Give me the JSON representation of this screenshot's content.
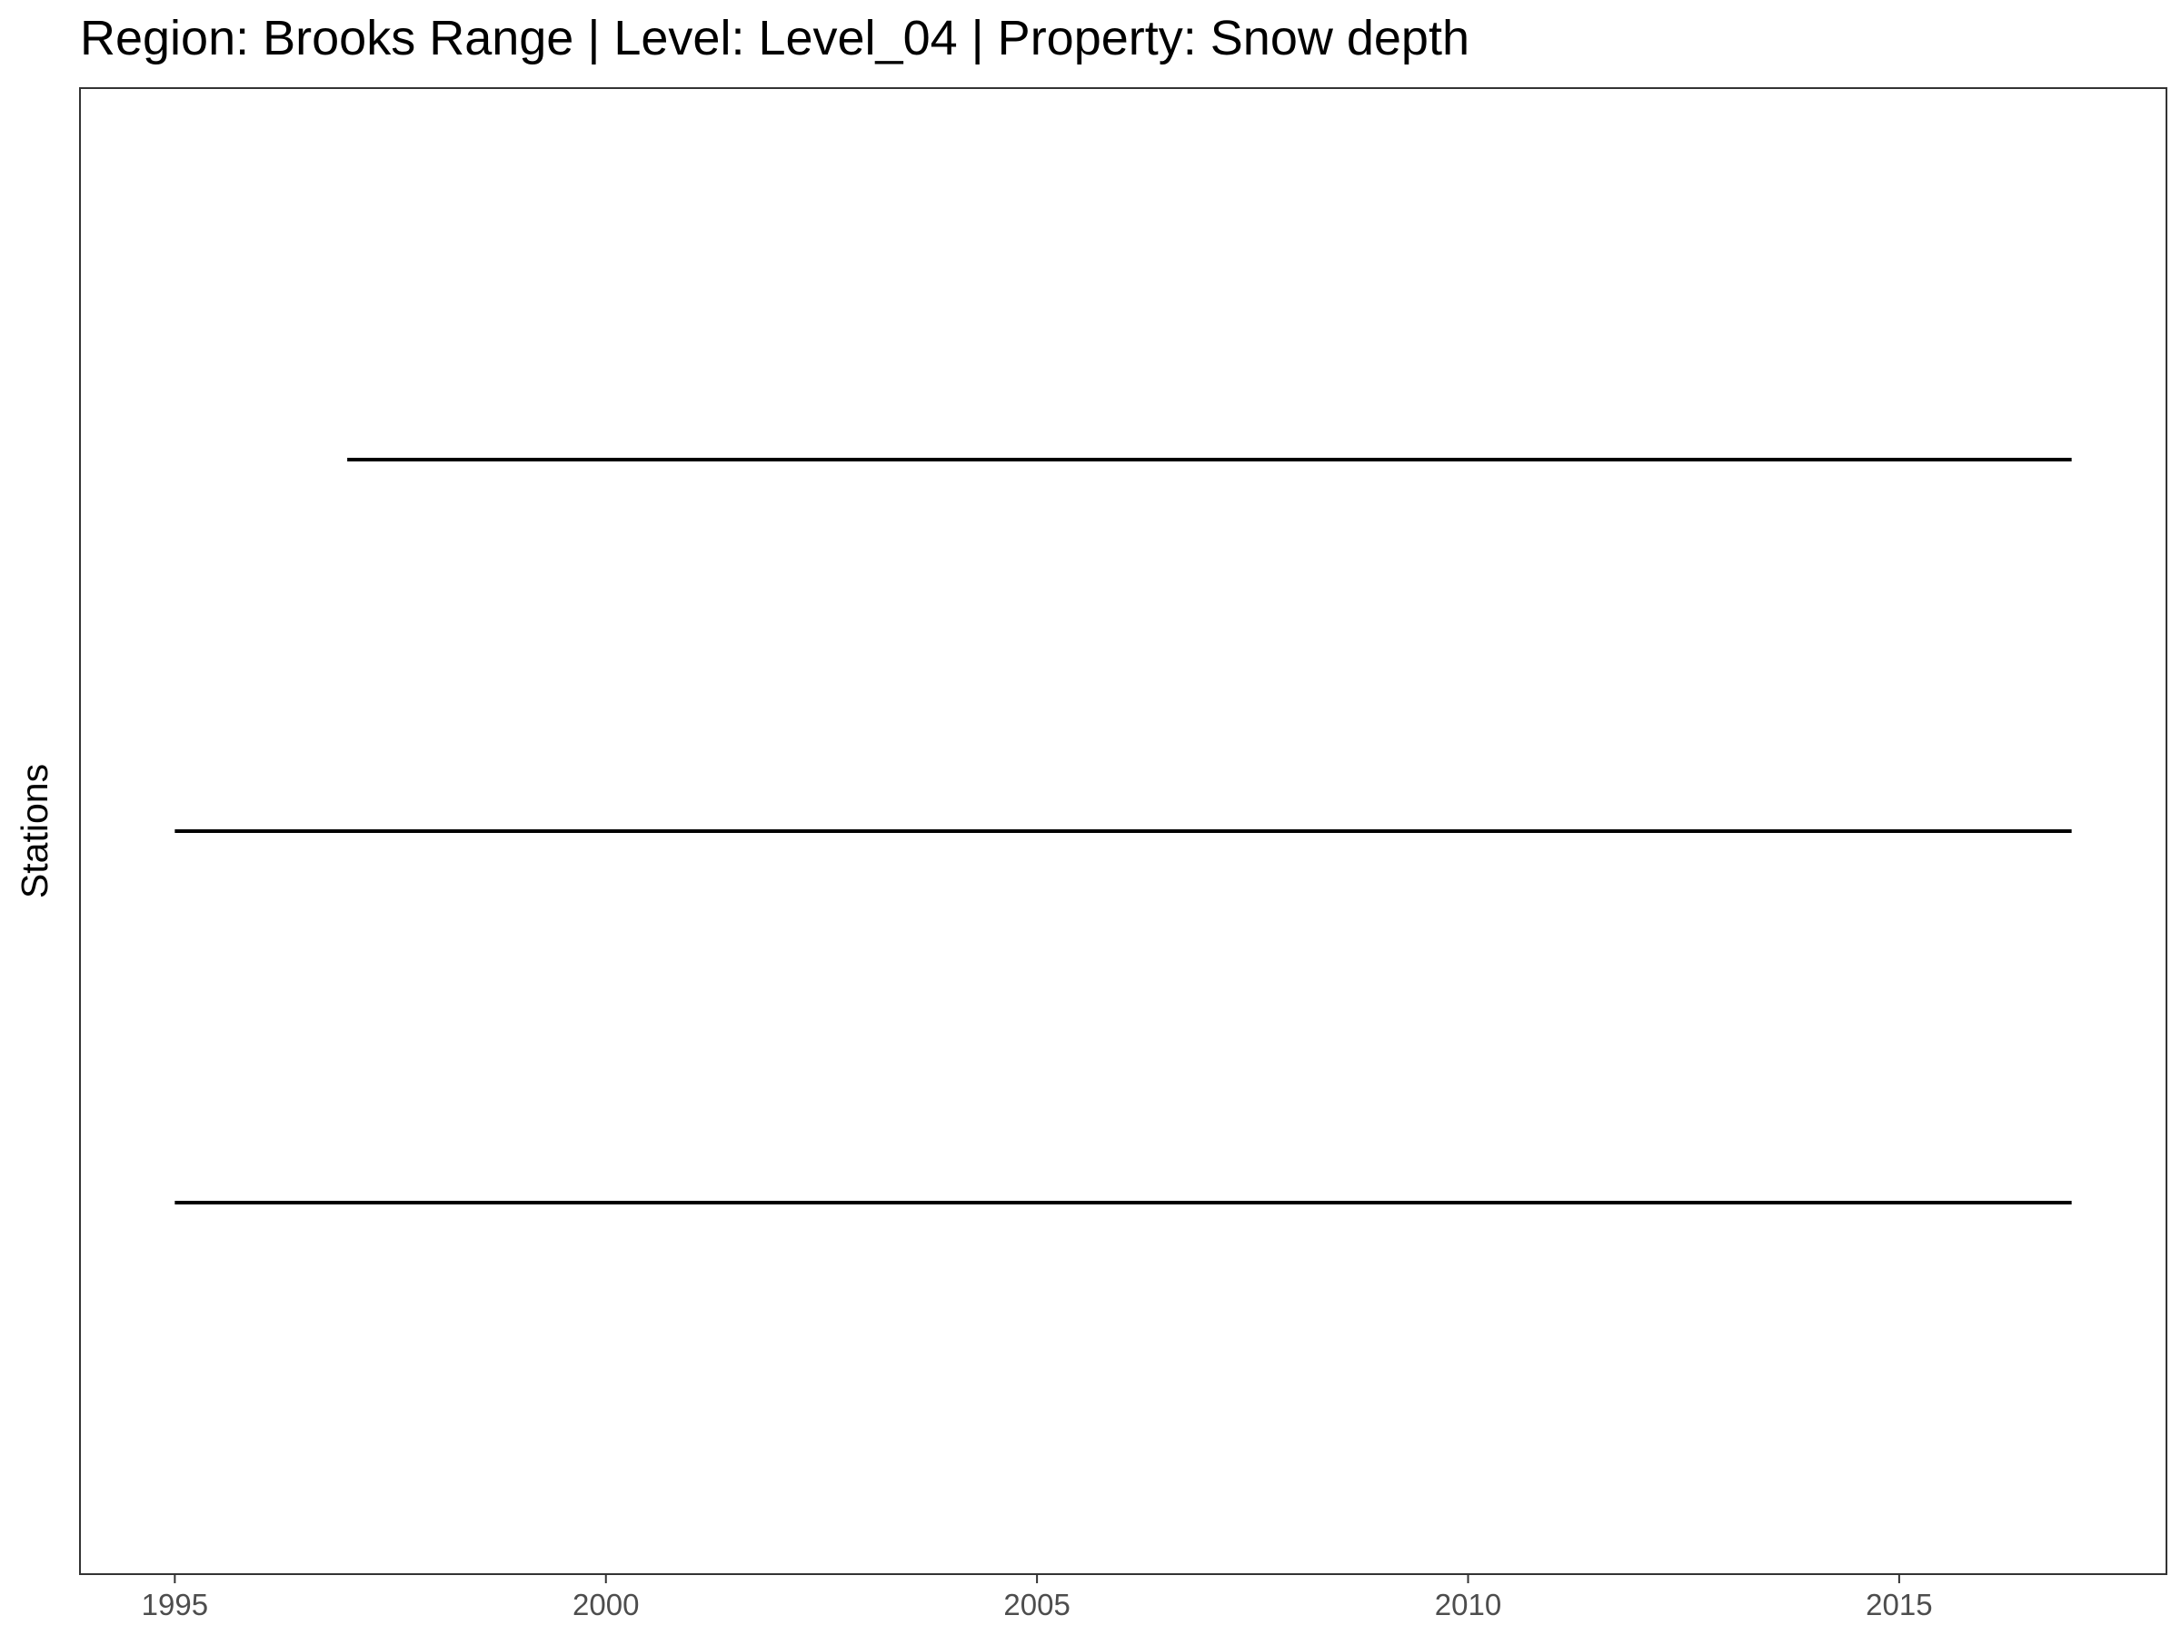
{
  "chart_data": {
    "type": "line",
    "title": "Region: Brooks Range | Level: Level_04 | Property: Snow depth",
    "xlabel": "",
    "ylabel": "Stations",
    "xlim": [
      1993.9,
      2018.1
    ],
    "x_ticks": [
      1995,
      2000,
      2005,
      2010,
      2015
    ],
    "x_tick_labels": [
      "1995",
      "2000",
      "2005",
      "2010",
      "2015"
    ],
    "y_ticks_shown": false,
    "grid": false,
    "legend": "none",
    "line_color": "#000000",
    "series": [
      {
        "start": 1997.0,
        "end": 2017.0
      },
      {
        "start": 1995.0,
        "end": 2017.0
      },
      {
        "start": 1995.0,
        "end": 2017.0
      }
    ]
  }
}
